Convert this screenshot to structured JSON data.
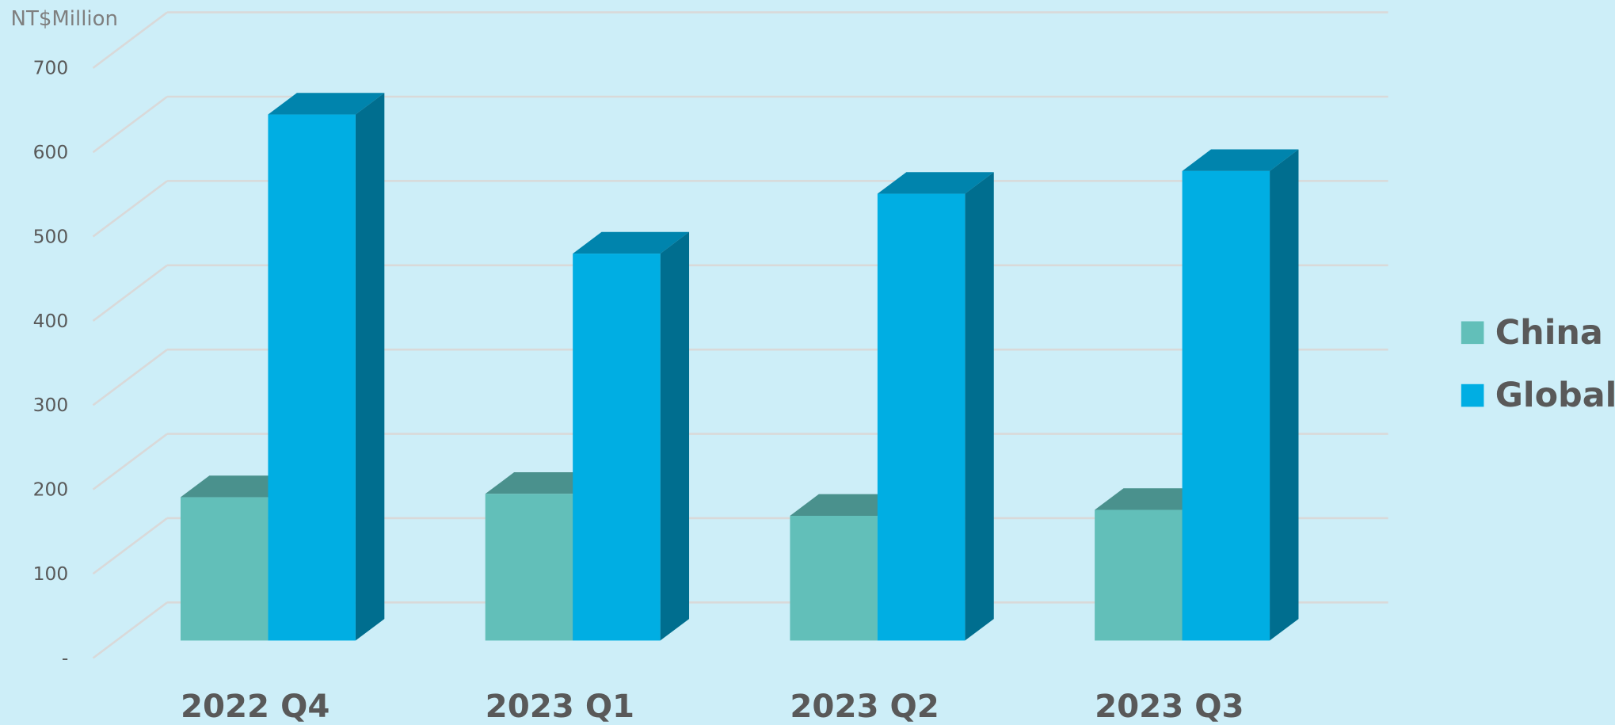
{
  "chart_data": {
    "type": "bar3d",
    "y_label": "NT$Million",
    "categories": [
      "2022 Q4",
      "2023 Q1",
      "2023 Q2",
      "2023 Q3"
    ],
    "series": [
      {
        "name": "China",
        "color": "#62bfb9",
        "values": [
          170,
          174,
          148,
          155
        ]
      },
      {
        "name": "Global",
        "color": "#00aee3",
        "values": [
          624,
          459,
          530,
          557
        ]
      }
    ],
    "ylim": [
      0,
      700
    ],
    "yticks": [
      {
        "value": 0,
        "label": "-"
      },
      100,
      200,
      300,
      400,
      500,
      600,
      700
    ],
    "grid": true,
    "legend": "right"
  }
}
